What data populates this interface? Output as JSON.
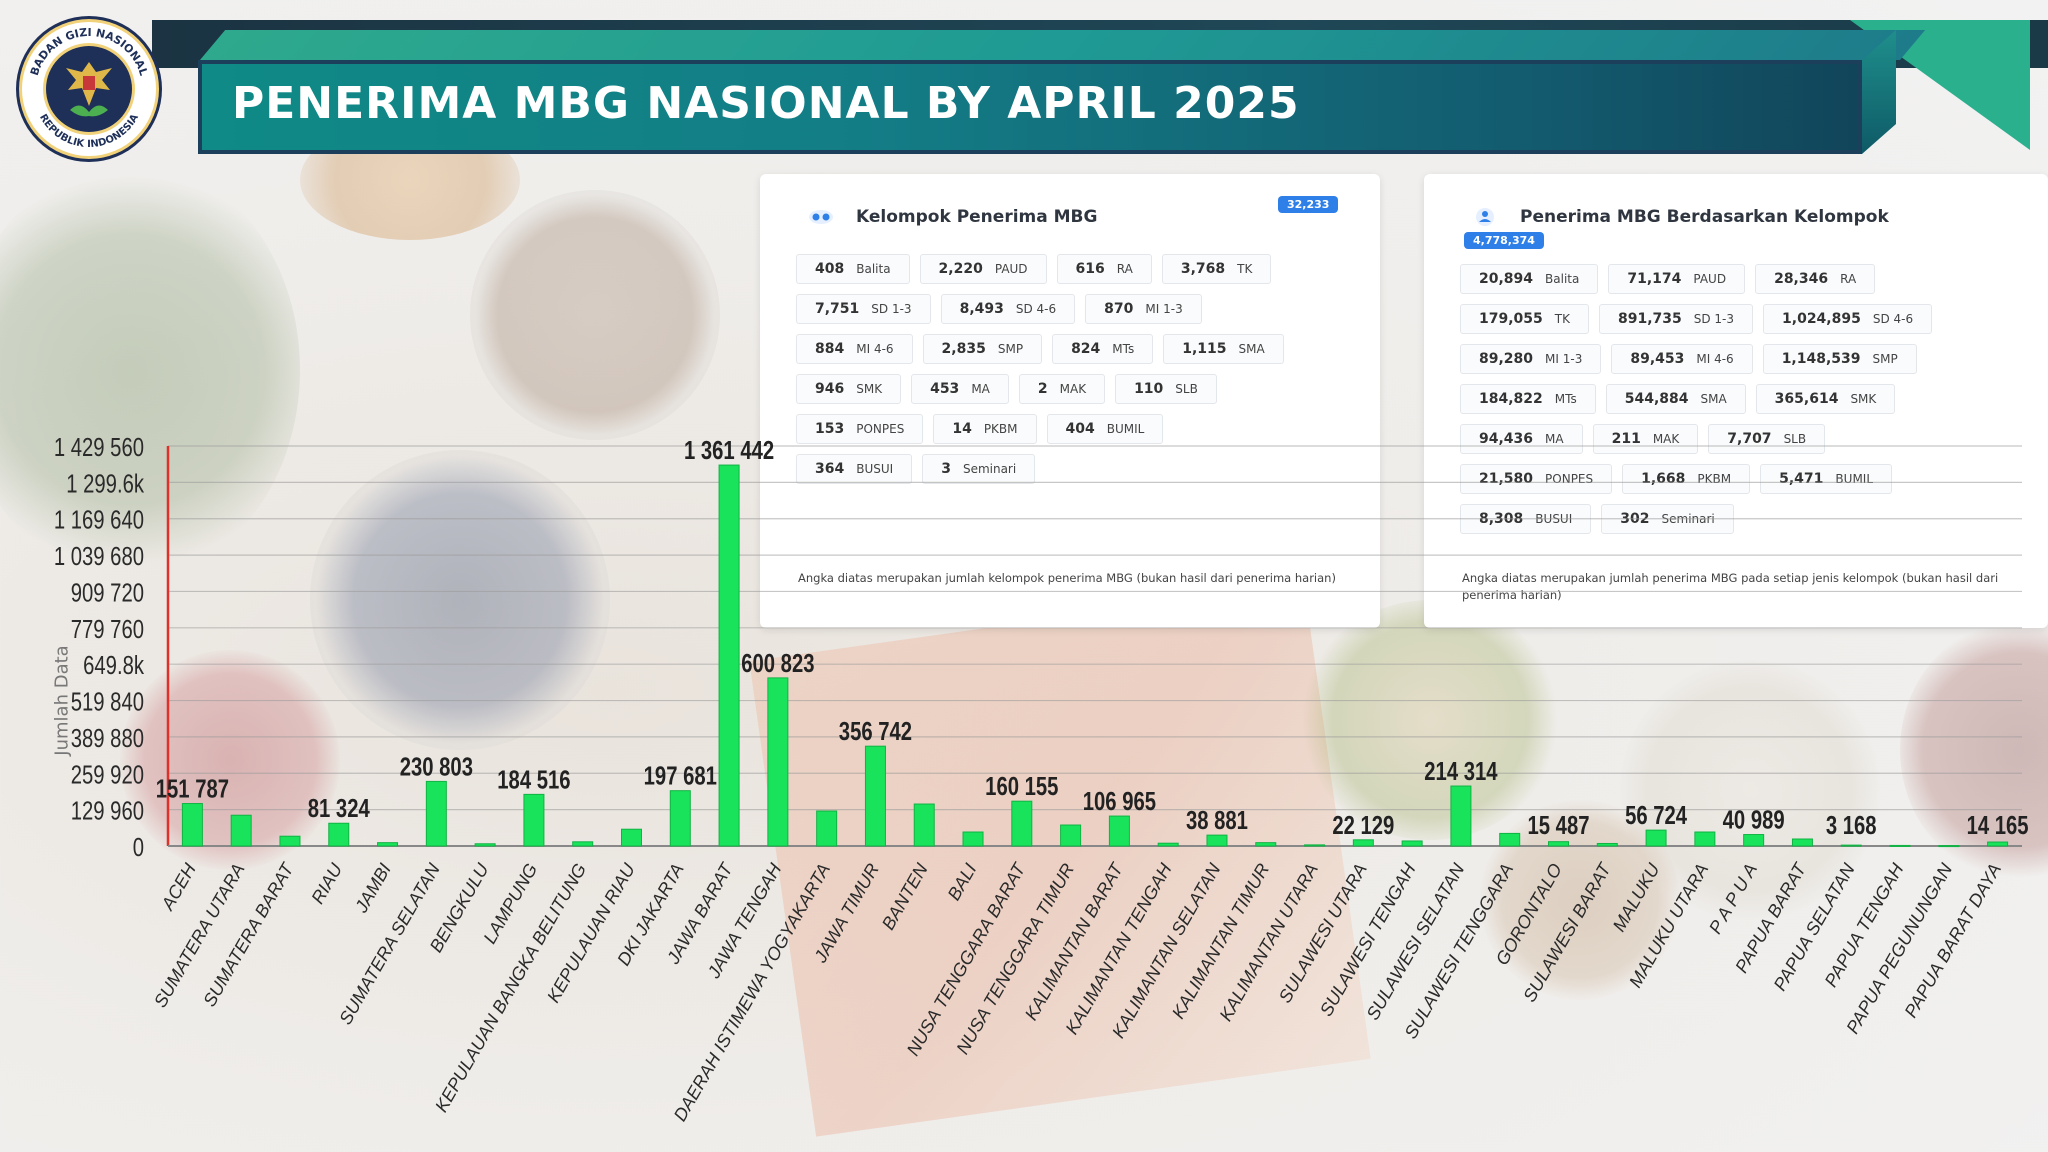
{
  "header": {
    "title": "PENERIMA MBG NASIONAL BY APRIL 2025",
    "logo_text_top": "BADAN GIZI NASIONAL",
    "logo_text_bottom": "REPUBLIK INDONESIA"
  },
  "panel_left": {
    "title": "Kelompok Penerima MBG",
    "total": "32,233",
    "icon": "group-icon",
    "rows": [
      [
        {
          "value": "408",
          "label": "Balita"
        },
        {
          "value": "2,220",
          "label": "PAUD"
        },
        {
          "value": "616",
          "label": "RA"
        },
        {
          "value": "3,768",
          "label": "TK"
        }
      ],
      [
        {
          "value": "7,751",
          "label": "SD 1-3"
        },
        {
          "value": "8,493",
          "label": "SD 4-6"
        },
        {
          "value": "870",
          "label": "MI 1-3"
        }
      ],
      [
        {
          "value": "884",
          "label": "MI 4-6"
        },
        {
          "value": "2,835",
          "label": "SMP"
        },
        {
          "value": "824",
          "label": "MTs"
        },
        {
          "value": "1,115",
          "label": "SMA"
        }
      ],
      [
        {
          "value": "946",
          "label": "SMK"
        },
        {
          "value": "453",
          "label": "MA"
        },
        {
          "value": "2",
          "label": "MAK"
        },
        {
          "value": "110",
          "label": "SLB"
        }
      ],
      [
        {
          "value": "153",
          "label": "PONPES"
        },
        {
          "value": "14",
          "label": "PKBM"
        },
        {
          "value": "404",
          "label": "BUMIL"
        }
      ],
      [
        {
          "value": "364",
          "label": "BUSUI"
        },
        {
          "value": "3",
          "label": "Seminari"
        }
      ]
    ],
    "note": "Angka diatas merupakan jumlah kelompok penerima MBG (bukan hasil dari penerima harian)"
  },
  "panel_right": {
    "title": "Penerima MBG Berdasarkan Kelompok",
    "total": "4,778,374",
    "icon": "people-icon",
    "rows": [
      [
        {
          "value": "20,894",
          "label": "Balita"
        },
        {
          "value": "71,174",
          "label": "PAUD"
        },
        {
          "value": "28,346",
          "label": "RA"
        }
      ],
      [
        {
          "value": "179,055",
          "label": "TK"
        },
        {
          "value": "891,735",
          "label": "SD 1-3"
        },
        {
          "value": "1,024,895",
          "label": "SD 4-6"
        }
      ],
      [
        {
          "value": "89,280",
          "label": "MI 1-3"
        },
        {
          "value": "89,453",
          "label": "MI 4-6"
        },
        {
          "value": "1,148,539",
          "label": "SMP"
        }
      ],
      [
        {
          "value": "184,822",
          "label": "MTs"
        },
        {
          "value": "544,884",
          "label": "SMA"
        },
        {
          "value": "365,614",
          "label": "SMK"
        }
      ],
      [
        {
          "value": "94,436",
          "label": "MA"
        },
        {
          "value": "211",
          "label": "MAK"
        },
        {
          "value": "7,707",
          "label": "SLB"
        }
      ],
      [
        {
          "value": "21,580",
          "label": "PONPES"
        },
        {
          "value": "1,668",
          "label": "PKBM"
        },
        {
          "value": "5,471",
          "label": "BUMIL"
        }
      ],
      [
        {
          "value": "8,308",
          "label": "BUSUI"
        },
        {
          "value": "302",
          "label": "Seminari"
        }
      ]
    ],
    "note": "Angka diatas merupakan jumlah penerima MBG pada setiap jenis kelompok (bukan hasil dari penerima harian)"
  },
  "chart_data": {
    "type": "bar",
    "ylabel": "Jumlah Data",
    "ylim": [
      0,
      1429560
    ],
    "y_ticks": [
      0,
      129960,
      259920,
      389880,
      519840,
      649800,
      779760,
      909720,
      1039680,
      1169640,
      1299600,
      1429560
    ],
    "y_tick_labels": [
      "0",
      "129 960",
      "259 920",
      "389 880",
      "519 840",
      "649.8k",
      "779 760",
      "909 720",
      "1 039 680",
      "1 169 640",
      "1 299.6k",
      "1 429 560"
    ],
    "grid": true,
    "bar_color": "#19e35a",
    "categories": [
      "ACEH",
      "SUMATERA UTARA",
      "SUMATERA BARAT",
      "RIAU",
      "JAMBI",
      "SUMATERA SELATAN",
      "BENGKULU",
      "LAMPUNG",
      "KEPULAUAN BANGKA BELITUNG",
      "KEPULAUAN RIAU",
      "DKI JAKARTA",
      "JAWA BARAT",
      "JAWA TENGAH",
      "DAERAH ISTIMEWA YOGYAKARTA",
      "JAWA TIMUR",
      "BANTEN",
      "BALI",
      "NUSA TENGGARA BARAT",
      "NUSA TENGGARA TIMUR",
      "KALIMANTAN BARAT",
      "KALIMANTAN TENGAH",
      "KALIMANTAN SELATAN",
      "KALIMANTAN TIMUR",
      "KALIMANTAN UTARA",
      "SULAWESI UTARA",
      "SULAWESI TENGAH",
      "SULAWESI SELATAN",
      "SULAWESI TENGGARA",
      "GORONTALO",
      "SULAWESI BARAT",
      "MALUKU",
      "MALUKU UTARA",
      "P A P U A",
      "PAPUA BARAT",
      "PAPUA SELATAN",
      "PAPUA TENGAH",
      "PAPUA PEGUNUNGAN",
      "PAPUA BARAT DAYA"
    ],
    "values": [
      151787,
      110000,
      35000,
      81324,
      12000,
      230803,
      8000,
      184516,
      15000,
      60000,
      197681,
      1361442,
      600823,
      125000,
      356742,
      150000,
      50000,
      160155,
      75000,
      106965,
      10000,
      38881,
      12000,
      4000,
      22129,
      18000,
      214314,
      45000,
      15487,
      9000,
      56724,
      50000,
      40989,
      25000,
      3168,
      2000,
      1500,
      14165
    ],
    "data_labels": [
      {
        "category": "ACEH",
        "text": "151 787"
      },
      {
        "category": "RIAU",
        "text": "81 324"
      },
      {
        "category": "SUMATERA SELATAN",
        "text": "230 803"
      },
      {
        "category": "LAMPUNG",
        "text": "184 516"
      },
      {
        "category": "DKI JAKARTA",
        "text": "197 681"
      },
      {
        "category": "JAWA BARAT",
        "text": "1 361 442"
      },
      {
        "category": "JAWA TENGAH",
        "text": "600 823"
      },
      {
        "category": "JAWA TIMUR",
        "text": "356 742"
      },
      {
        "category": "NUSA TENGGARA BARAT",
        "text": "160 155"
      },
      {
        "category": "KALIMANTAN BARAT",
        "text": "106 965"
      },
      {
        "category": "KALIMANTAN SELATAN",
        "text": "38 881"
      },
      {
        "category": "SULAWESI UTARA",
        "text": "22 129"
      },
      {
        "category": "SULAWESI SELATAN",
        "text": "214 314"
      },
      {
        "category": "GORONTALO",
        "text": "15 487"
      },
      {
        "category": "MALUKU",
        "text": "56 724"
      },
      {
        "category": "P A P U A",
        "text": "40 989"
      },
      {
        "category": "PAPUA SELATAN",
        "text": "3 168"
      },
      {
        "category": "PAPUA BARAT DAYA",
        "text": "14 165"
      }
    ]
  }
}
